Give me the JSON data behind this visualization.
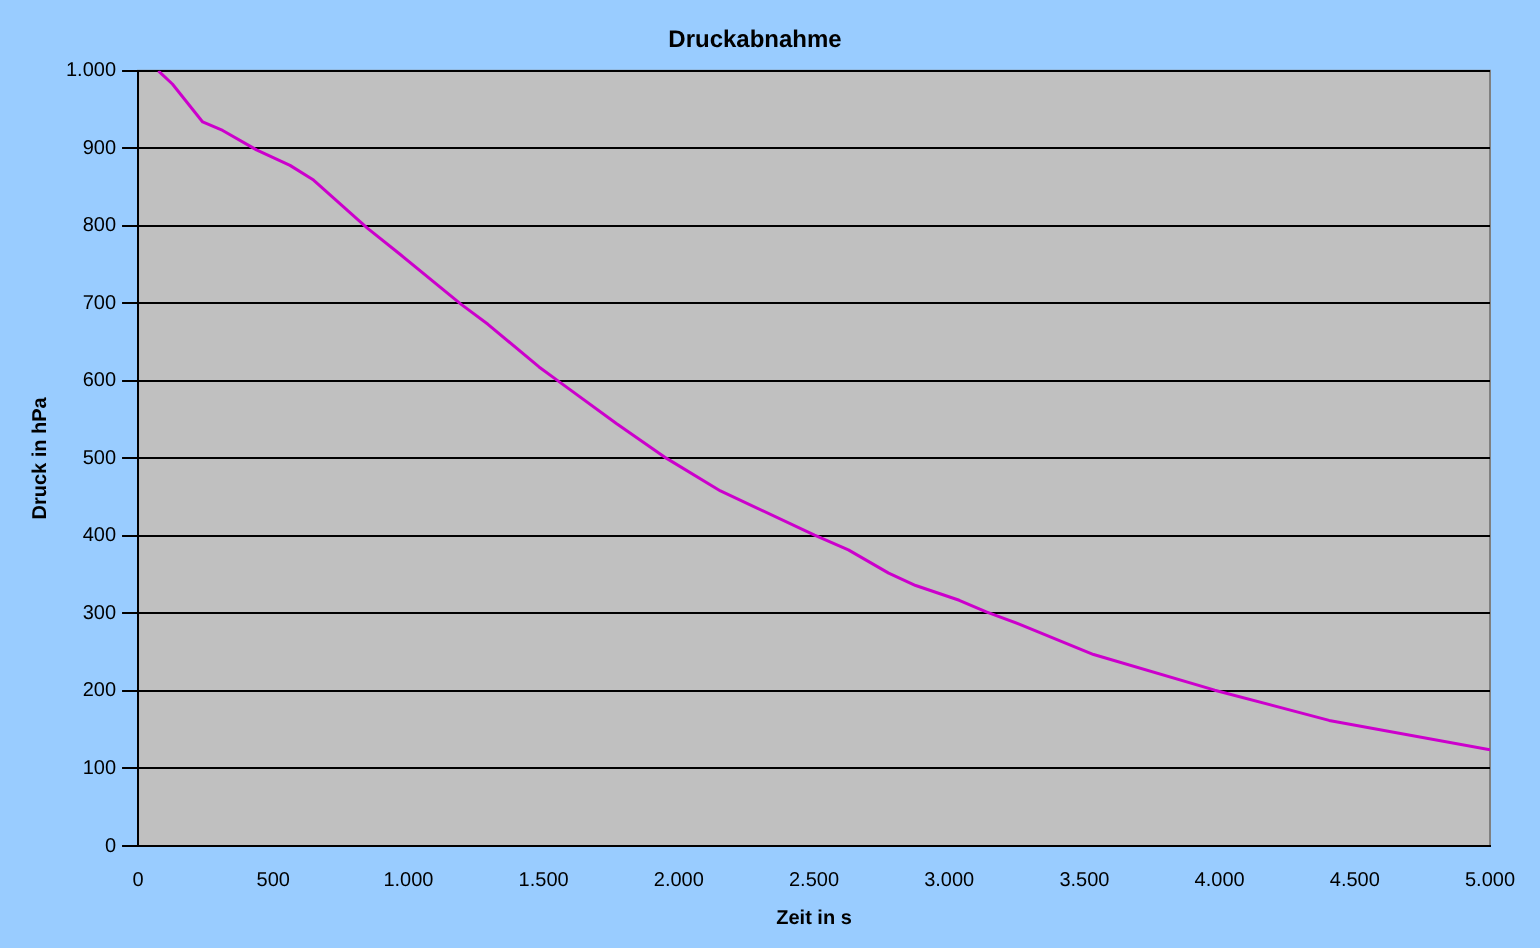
{
  "chart_data": {
    "type": "line",
    "title": "Druckabnahme",
    "xlabel": "Zeit in s",
    "ylabel": "Druck in hPa",
    "x": [
      75,
      127,
      239,
      313,
      438,
      562,
      649,
      848,
      970,
      1194,
      1294,
      1483,
      1557,
      1769,
      1955,
      2154,
      2502,
      2627,
      2776,
      2876,
      3037,
      3137,
      3261,
      3534,
      3982,
      4405,
      5000
    ],
    "series": [
      {
        "color": "#cc00cc",
        "values": [
          1000,
          983,
          934,
          923,
          898,
          878,
          859,
          797,
          763,
          699,
          673,
          618,
          599,
          545,
          500,
          458,
          401,
          382,
          352,
          336,
          317,
          302,
          286,
          247,
          201,
          162,
          124
        ]
      }
    ],
    "xlim": [
      0,
      5000
    ],
    "xticks": [
      0,
      500,
      {
        "value": 1000,
        "label": "1.000"
      },
      {
        "value": 1500,
        "label": "1.500"
      },
      {
        "value": 2000,
        "label": "2.000"
      },
      {
        "value": 2500,
        "label": "2.500"
      },
      {
        "value": 3000,
        "label": "3.000"
      },
      {
        "value": 3500,
        "label": "3.500"
      },
      {
        "value": 4000,
        "label": "4.000"
      },
      {
        "value": 4500,
        "label": "4.500"
      },
      {
        "value": 5000,
        "label": "5.000"
      }
    ],
    "ylim": [
      0,
      1000
    ],
    "yticks": [
      0,
      100,
      200,
      300,
      400,
      500,
      600,
      700,
      800,
      900,
      {
        "value": 1000,
        "label": "1.000"
      }
    ],
    "grid": "y",
    "marker": "none",
    "line_style": "solid",
    "legend": false
  }
}
